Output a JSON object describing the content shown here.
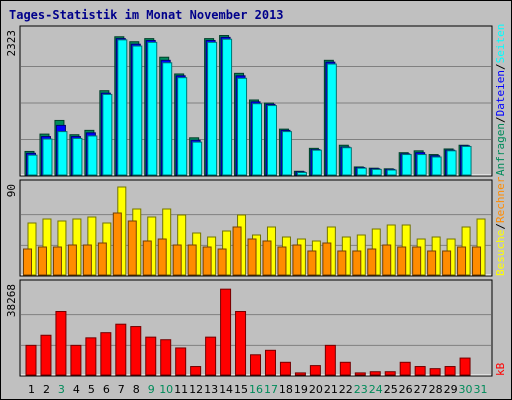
{
  "title": "Tages-Statistik im Monat November 2013",
  "chart_data": [
    {
      "type": "bar",
      "panel": "top",
      "max_label": "2323",
      "ylim": [
        0,
        2323
      ],
      "categories": [
        "1",
        "2",
        "3",
        "4",
        "5",
        "6",
        "7",
        "8",
        "9",
        "10",
        "11",
        "12",
        "13",
        "14",
        "15",
        "16",
        "17",
        "18",
        "19",
        "20",
        "21",
        "22",
        "23",
        "24",
        "25",
        "26",
        "27",
        "28",
        "29",
        "30",
        "31"
      ],
      "series": [
        {
          "name": "Anfragen",
          "color": "#008b5a",
          "values": [
            380,
            660,
            880,
            650,
            720,
            1360,
            2230,
            2150,
            2200,
            1900,
            1630,
            600,
            2200,
            2250,
            1640,
            1210,
            1160,
            740,
            60,
            430,
            1850,
            480,
            130,
            110,
            100,
            360,
            390,
            330,
            420,
            480,
            0
          ]
        },
        {
          "name": "Dateien",
          "color": "#0000ff",
          "values": [
            350,
            620,
            800,
            620,
            680,
            1320,
            2200,
            2110,
            2170,
            1850,
            1600,
            560,
            2170,
            2220,
            1600,
            1180,
            1140,
            720,
            50,
            410,
            1820,
            450,
            120,
            100,
            90,
            340,
            360,
            310,
            400,
            470,
            0
          ]
        },
        {
          "name": "Seiten",
          "color": "#00ffff",
          "values": [
            320,
            580,
            700,
            590,
            630,
            1300,
            2180,
            2080,
            2140,
            1810,
            1570,
            530,
            2140,
            2190,
            1560,
            1150,
            1120,
            700,
            40,
            400,
            1790,
            440,
            110,
            90,
            80,
            330,
            330,
            290,
            390,
            460,
            0
          ]
        }
      ]
    },
    {
      "type": "bar",
      "panel": "middle",
      "max_label": "90",
      "ylim": [
        0,
        90
      ],
      "categories": [
        "1",
        "2",
        "3",
        "4",
        "5",
        "6",
        "7",
        "8",
        "9",
        "10",
        "11",
        "12",
        "13",
        "14",
        "15",
        "16",
        "17",
        "18",
        "19",
        "20",
        "21",
        "22",
        "23",
        "24",
        "25",
        "26",
        "27",
        "28",
        "29",
        "30",
        "31"
      ],
      "series": [
        {
          "name": "Besuche",
          "color": "#ffff00",
          "values": [
            52,
            56,
            54,
            56,
            58,
            52,
            88,
            66,
            58,
            66,
            60,
            42,
            38,
            44,
            60,
            40,
            48,
            38,
            36,
            34,
            48,
            38,
            40,
            46,
            50,
            50,
            36,
            38,
            36,
            48,
            56
          ]
        },
        {
          "name": "Rechner",
          "color": "#ff8c00",
          "values": [
            26,
            28,
            28,
            30,
            30,
            32,
            62,
            54,
            34,
            36,
            30,
            30,
            28,
            26,
            48,
            36,
            34,
            28,
            30,
            24,
            32,
            24,
            24,
            26,
            30,
            28,
            28,
            24,
            24,
            28,
            28
          ]
        }
      ]
    },
    {
      "type": "bar",
      "panel": "bottom",
      "max_label": "38268",
      "ylim": [
        0,
        38268
      ],
      "categories": [
        "1",
        "2",
        "3",
        "4",
        "5",
        "6",
        "7",
        "8",
        "9",
        "10",
        "11",
        "12",
        "13",
        "14",
        "15",
        "16",
        "17",
        "18",
        "19",
        "20",
        "21",
        "22",
        "23",
        "24",
        "25",
        "26",
        "27",
        "28",
        "29",
        "30",
        "31"
      ],
      "series": [
        {
          "name": "kB",
          "color": "#ff0000",
          "values": [
            12600,
            16900,
            27000,
            12600,
            15800,
            18000,
            21600,
            20600,
            16100,
            15000,
            11500,
            3600,
            16100,
            36500,
            27000,
            8600,
            10500,
            5400,
            900,
            4000,
            12600,
            5400,
            900,
            1400,
            1400,
            5400,
            3600,
            2700,
            3600,
            7200,
            0
          ]
        }
      ]
    }
  ],
  "legend_right": {
    "top": [
      {
        "label": "Anfragen",
        "color": "#008b5a"
      },
      {
        "label": "Dateien",
        "color": "#0000ff"
      },
      {
        "label": "Seiten",
        "color": "#00ffff"
      }
    ],
    "middle": [
      {
        "label": "Besuche",
        "color": "#ffff00"
      },
      {
        "label": "Rechner",
        "color": "#ff8c00"
      }
    ],
    "bottom": [
      {
        "label": "kB",
        "color": "#ff0000"
      }
    ],
    "separator": "/"
  },
  "days": [
    {
      "label": "1",
      "color": "#000000"
    },
    {
      "label": "2",
      "color": "#000000"
    },
    {
      "label": "3",
      "color": "#008b5a"
    },
    {
      "label": "4",
      "color": "#000000"
    },
    {
      "label": "5",
      "color": "#000000"
    },
    {
      "label": "6",
      "color": "#000000"
    },
    {
      "label": "7",
      "color": "#000000"
    },
    {
      "label": "8",
      "color": "#000000"
    },
    {
      "label": "9",
      "color": "#008b5a"
    },
    {
      "label": "10",
      "color": "#008b5a"
    },
    {
      "label": "11",
      "color": "#000000"
    },
    {
      "label": "12",
      "color": "#000000"
    },
    {
      "label": "13",
      "color": "#000000"
    },
    {
      "label": "14",
      "color": "#000000"
    },
    {
      "label": "15",
      "color": "#000000"
    },
    {
      "label": "16",
      "color": "#008b5a"
    },
    {
      "label": "17",
      "color": "#008b5a"
    },
    {
      "label": "18",
      "color": "#000000"
    },
    {
      "label": "19",
      "color": "#000000"
    },
    {
      "label": "20",
      "color": "#000000"
    },
    {
      "label": "21",
      "color": "#000000"
    },
    {
      "label": "22",
      "color": "#000000"
    },
    {
      "label": "23",
      "color": "#008b5a"
    },
    {
      "label": "24",
      "color": "#008b5a"
    },
    {
      "label": "25",
      "color": "#000000"
    },
    {
      "label": "26",
      "color": "#000000"
    },
    {
      "label": "27",
      "color": "#000000"
    },
    {
      "label": "28",
      "color": "#000000"
    },
    {
      "label": "29",
      "color": "#000000"
    },
    {
      "label": "30",
      "color": "#008b5a"
    },
    {
      "label": "31",
      "color": "#008b5a"
    }
  ]
}
